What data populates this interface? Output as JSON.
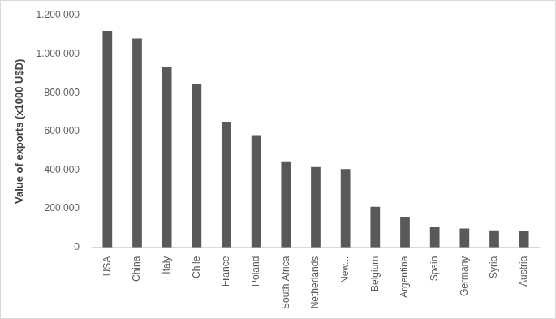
{
  "chart_data": {
    "type": "bar",
    "y_label": "Value of exports (x1000 U$D)",
    "categories": [
      "USA",
      "China",
      "Italy",
      "Chile",
      "France",
      "Poland",
      "South Africa",
      "Netherlands",
      "New...",
      "Belgium",
      "Argentina",
      "Spain",
      "Germany",
      "Syria",
      "Austria"
    ],
    "values": [
      1120000,
      1080000,
      935000,
      845000,
      650000,
      580000,
      445000,
      415000,
      405000,
      210000,
      158000,
      103000,
      97000,
      88000,
      87000
    ],
    "color": "#595959",
    "ylim": [
      0,
      1200000
    ],
    "yticks": [
      0,
      {
        "value": 200000,
        "label": "200.000"
      },
      {
        "value": 400000,
        "label": "400.000"
      },
      {
        "value": 600000,
        "label": "600.000"
      },
      {
        "value": 800000,
        "label": "800.000"
      },
      {
        "value": 1000000,
        "label": "1.000.000"
      },
      {
        "value": 1200000,
        "label": "1.200.000"
      }
    ],
    "grid": false
  }
}
